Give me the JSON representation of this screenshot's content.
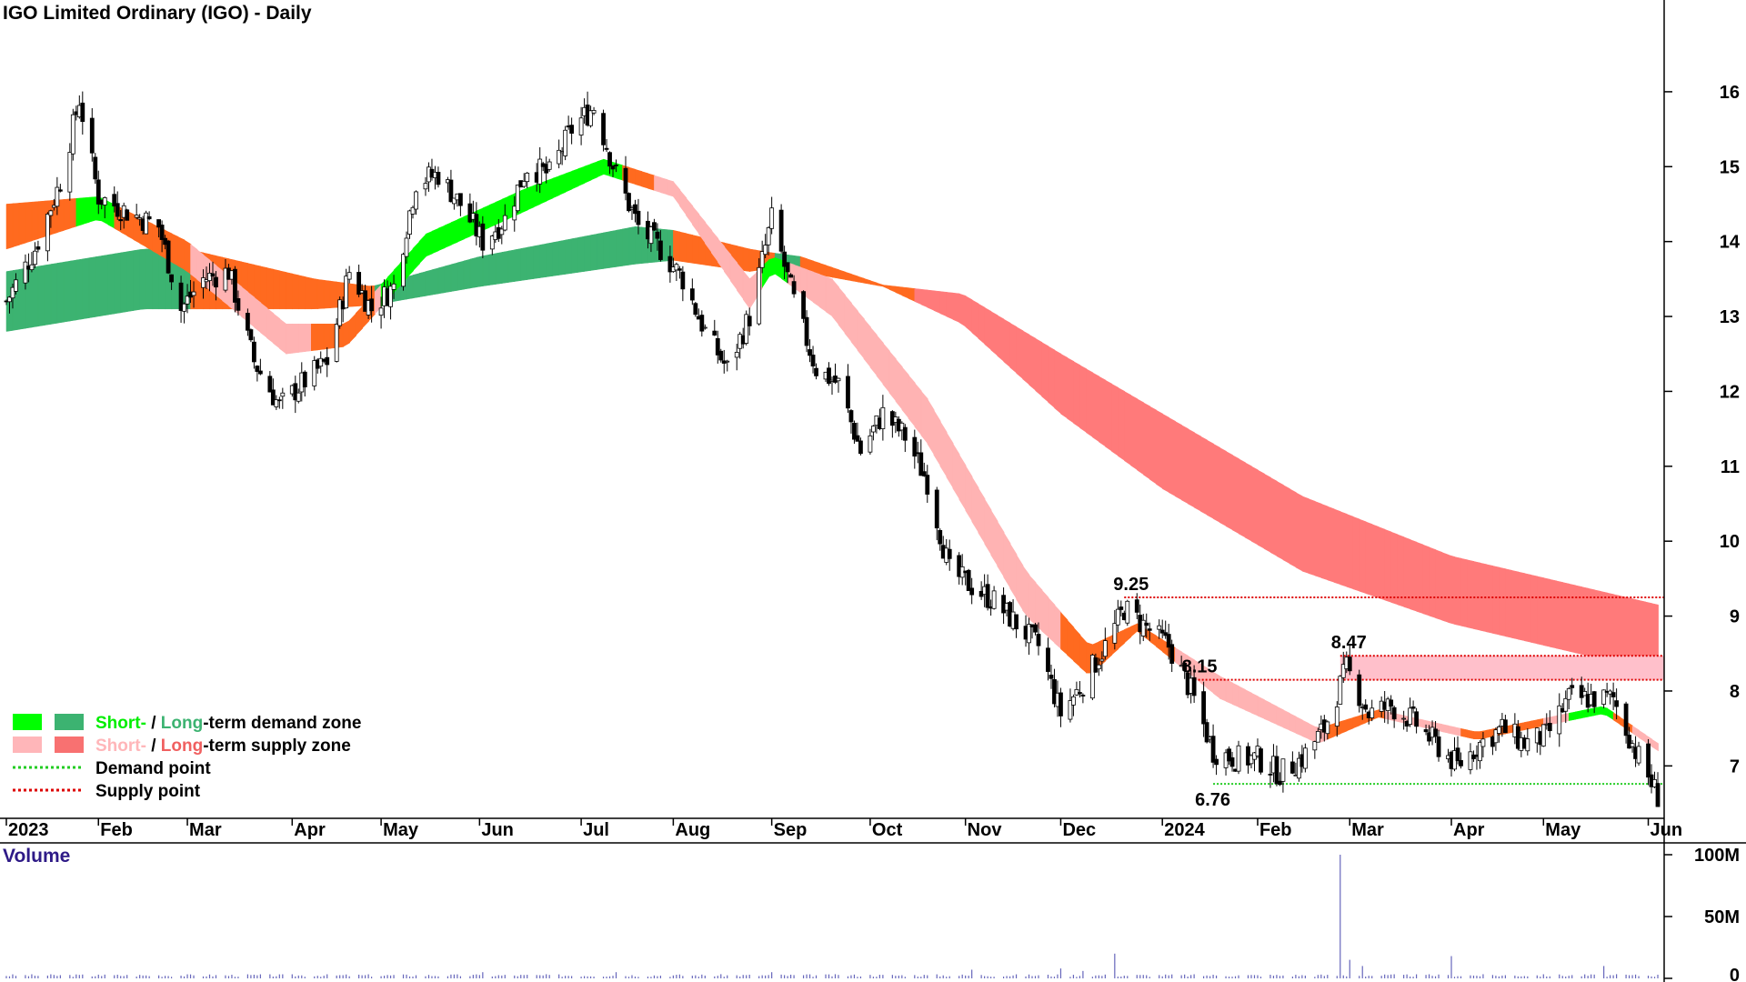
{
  "chart_data": {
    "type": "candlestick",
    "title": "IGO Limited Ordinary (IGO) - Daily",
    "ylim": [
      6.3,
      16.8
    ],
    "y_ticks": [
      7,
      8,
      9,
      10,
      11,
      12,
      13,
      14,
      15,
      16
    ],
    "x_range": [
      "2023-01-01",
      "2024-06-08"
    ],
    "x_ticks": [
      {
        "label": "2023",
        "date": "2023-01-03"
      },
      {
        "label": "Feb",
        "date": "2023-02-01"
      },
      {
        "label": "Mar",
        "date": "2023-03-01"
      },
      {
        "label": "Apr",
        "date": "2023-04-03"
      },
      {
        "label": "May",
        "date": "2023-05-01"
      },
      {
        "label": "Jun",
        "date": "2023-06-01"
      },
      {
        "label": "Jul",
        "date": "2023-07-03"
      },
      {
        "label": "Aug",
        "date": "2023-08-01"
      },
      {
        "label": "Sep",
        "date": "2023-09-01"
      },
      {
        "label": "Oct",
        "date": "2023-10-02"
      },
      {
        "label": "Nov",
        "date": "2023-11-01"
      },
      {
        "label": "Dec",
        "date": "2023-12-01"
      },
      {
        "label": "2024",
        "date": "2024-01-02"
      },
      {
        "label": "Feb",
        "date": "2024-02-01"
      },
      {
        "label": "Mar",
        "date": "2024-03-01"
      },
      {
        "label": "Apr",
        "date": "2024-04-02"
      },
      {
        "label": "May",
        "date": "2024-05-01"
      },
      {
        "label": "Jun",
        "date": "2024-06-03"
      }
    ],
    "price_series": [
      {
        "date": "2023-01-03",
        "close": 13.2
      },
      {
        "date": "2023-01-12",
        "close": 13.9
      },
      {
        "date": "2023-01-20",
        "close": 14.8
      },
      {
        "date": "2023-01-26",
        "close": 15.9
      },
      {
        "date": "2023-02-01",
        "close": 14.6
      },
      {
        "date": "2023-02-10",
        "close": 14.4
      },
      {
        "date": "2023-02-20",
        "close": 14.2
      },
      {
        "date": "2023-02-27",
        "close": 13.1
      },
      {
        "date": "2023-03-06",
        "close": 13.5
      },
      {
        "date": "2023-03-14",
        "close": 13.6
      },
      {
        "date": "2023-03-22",
        "close": 12.4
      },
      {
        "date": "2023-03-30",
        "close": 11.8
      },
      {
        "date": "2023-04-06",
        "close": 12.1
      },
      {
        "date": "2023-04-14",
        "close": 12.4
      },
      {
        "date": "2023-04-21",
        "close": 13.6
      },
      {
        "date": "2023-04-28",
        "close": 13.1
      },
      {
        "date": "2023-05-05",
        "close": 13.4
      },
      {
        "date": "2023-05-12",
        "close": 14.8
      },
      {
        "date": "2023-05-19",
        "close": 14.9
      },
      {
        "date": "2023-05-26",
        "close": 14.5
      },
      {
        "date": "2023-06-02",
        "close": 14.0
      },
      {
        "date": "2023-06-09",
        "close": 14.3
      },
      {
        "date": "2023-06-16",
        "close": 15.0
      },
      {
        "date": "2023-06-23",
        "close": 14.9
      },
      {
        "date": "2023-06-30",
        "close": 15.5
      },
      {
        "date": "2023-07-07",
        "close": 15.8
      },
      {
        "date": "2023-07-14",
        "close": 14.9
      },
      {
        "date": "2023-07-21",
        "close": 14.2
      },
      {
        "date": "2023-07-28",
        "close": 13.9
      },
      {
        "date": "2023-08-04",
        "close": 13.5
      },
      {
        "date": "2023-08-11",
        "close": 12.8
      },
      {
        "date": "2023-08-18",
        "close": 12.3
      },
      {
        "date": "2023-08-25",
        "close": 13.0
      },
      {
        "date": "2023-09-01",
        "close": 14.3
      },
      {
        "date": "2023-09-08",
        "close": 13.2
      },
      {
        "date": "2023-09-15",
        "close": 12.3
      },
      {
        "date": "2023-09-22",
        "close": 12.1
      },
      {
        "date": "2023-09-29",
        "close": 11.2
      },
      {
        "date": "2023-10-06",
        "close": 11.7
      },
      {
        "date": "2023-10-13",
        "close": 11.4
      },
      {
        "date": "2023-10-20",
        "close": 10.8
      },
      {
        "date": "2023-10-27",
        "close": 9.6
      },
      {
        "date": "2023-11-03",
        "close": 9.4
      },
      {
        "date": "2023-11-10",
        "close": 9.2
      },
      {
        "date": "2023-11-17",
        "close": 8.9
      },
      {
        "date": "2023-11-24",
        "close": 8.6
      },
      {
        "date": "2023-12-01",
        "close": 7.7
      },
      {
        "date": "2023-12-08",
        "close": 8.1
      },
      {
        "date": "2023-12-15",
        "close": 8.6
      },
      {
        "date": "2023-12-21",
        "close": 9.1
      },
      {
        "date": "2024-01-04",
        "close": 8.6
      },
      {
        "date": "2024-01-11",
        "close": 8.0
      },
      {
        "date": "2024-01-18",
        "close": 7.2
      },
      {
        "date": "2024-01-25",
        "close": 7.1
      },
      {
        "date": "2024-02-01",
        "close": 7.1
      },
      {
        "date": "2024-02-08",
        "close": 6.9
      },
      {
        "date": "2024-02-15",
        "close": 7.1
      },
      {
        "date": "2024-02-22",
        "close": 7.5
      },
      {
        "date": "2024-02-29",
        "close": 8.3
      },
      {
        "date": "2024-03-07",
        "close": 7.7
      },
      {
        "date": "2024-03-14",
        "close": 7.8
      },
      {
        "date": "2024-03-21",
        "close": 7.6
      },
      {
        "date": "2024-03-28",
        "close": 7.3
      },
      {
        "date": "2024-04-04",
        "close": 7.0
      },
      {
        "date": "2024-04-11",
        "close": 7.3
      },
      {
        "date": "2024-04-18",
        "close": 7.5
      },
      {
        "date": "2024-04-25",
        "close": 7.3
      },
      {
        "date": "2024-05-02",
        "close": 7.4
      },
      {
        "date": "2024-05-09",
        "close": 7.9
      },
      {
        "date": "2024-05-16",
        "close": 7.9
      },
      {
        "date": "2024-05-23",
        "close": 7.9
      },
      {
        "date": "2024-05-30",
        "close": 7.2
      },
      {
        "date": "2024-06-06",
        "close": 6.6
      }
    ],
    "long_term_band": [
      {
        "date": "2023-01-03",
        "low": 12.8,
        "high": 13.6,
        "type": "demand"
      },
      {
        "date": "2023-02-15",
        "low": 13.1,
        "high": 13.9,
        "type": "demand"
      },
      {
        "date": "2023-03-01",
        "low": 13.1,
        "high": 13.9,
        "type": "demand_to_supply"
      },
      {
        "date": "2023-04-10",
        "low": 13.1,
        "high": 13.5,
        "type": "supply"
      },
      {
        "date": "2023-04-28",
        "low": 13.15,
        "high": 13.4,
        "type": "demand"
      },
      {
        "date": "2023-06-01",
        "low": 13.4,
        "high": 13.8,
        "type": "demand"
      },
      {
        "date": "2023-07-20",
        "low": 13.7,
        "high": 14.2,
        "type": "demand"
      },
      {
        "date": "2023-08-01",
        "low": 13.75,
        "high": 14.15,
        "type": "supply"
      },
      {
        "date": "2023-08-25",
        "low": 13.6,
        "high": 13.9,
        "type": "supply"
      },
      {
        "date": "2023-09-01",
        "low": 13.65,
        "high": 13.85,
        "type": "demand"
      },
      {
        "date": "2023-09-10",
        "low": 13.6,
        "high": 13.8,
        "type": "supply"
      },
      {
        "date": "2023-10-06",
        "low": 13.4,
        "high": 13.42,
        "type": "supply"
      },
      {
        "date": "2023-10-31",
        "low": 12.9,
        "high": 13.3,
        "type": "supply"
      },
      {
        "date": "2023-12-01",
        "low": 11.7,
        "high": 12.5,
        "type": "supply"
      },
      {
        "date": "2024-01-02",
        "low": 10.7,
        "high": 11.7,
        "type": "supply"
      },
      {
        "date": "2024-02-15",
        "low": 9.6,
        "high": 10.6,
        "type": "supply"
      },
      {
        "date": "2024-04-02",
        "low": 8.9,
        "high": 9.8,
        "type": "supply"
      },
      {
        "date": "2024-06-06",
        "low": 8.25,
        "high": 9.15,
        "type": "supply"
      }
    ],
    "short_term_band": [
      {
        "date": "2023-01-03",
        "low": 13.9,
        "high": 14.5
      },
      {
        "date": "2023-02-01",
        "low": 14.3,
        "high": 14.6
      },
      {
        "date": "2023-03-01",
        "low": 13.6,
        "high": 14.0
      },
      {
        "date": "2023-04-01",
        "low": 12.5,
        "high": 12.9
      },
      {
        "date": "2023-04-20",
        "low": 12.6,
        "high": 12.9
      },
      {
        "date": "2023-05-15",
        "low": 13.8,
        "high": 14.1
      },
      {
        "date": "2023-06-15",
        "low": 14.4,
        "high": 14.7
      },
      {
        "date": "2023-07-10",
        "low": 14.9,
        "high": 15.1
      },
      {
        "date": "2023-08-01",
        "low": 14.6,
        "high": 14.8
      },
      {
        "date": "2023-08-25",
        "low": 13.1,
        "high": 13.5
      },
      {
        "date": "2023-09-01",
        "low": 13.6,
        "high": 13.8
      },
      {
        "date": "2023-09-20",
        "low": 13.0,
        "high": 13.5
      },
      {
        "date": "2023-10-20",
        "low": 11.3,
        "high": 11.9
      },
      {
        "date": "2023-11-20",
        "low": 9.0,
        "high": 9.6
      },
      {
        "date": "2023-12-10",
        "low": 8.2,
        "high": 8.6
      },
      {
        "date": "2023-12-25",
        "low": 8.8,
        "high": 8.9
      },
      {
        "date": "2024-01-20",
        "low": 7.9,
        "high": 8.2
      },
      {
        "date": "2024-02-20",
        "low": 7.3,
        "high": 7.5
      },
      {
        "date": "2024-03-10",
        "low": 7.65,
        "high": 7.75
      },
      {
        "date": "2024-04-10",
        "low": 7.35,
        "high": 7.45
      },
      {
        "date": "2024-05-20",
        "low": 7.7,
        "high": 7.8
      },
      {
        "date": "2024-06-06",
        "low": 7.2,
        "high": 7.3
      }
    ],
    "annotations": [
      {
        "text": "9.25",
        "date": "2023-12-21",
        "value": 9.25,
        "line_to": "2024-06-08",
        "line": "supply"
      },
      {
        "text": "8.47",
        "date": "2024-02-27",
        "value": 8.47,
        "line_to": "2024-06-08",
        "line": "supply"
      },
      {
        "text": "8.15",
        "date": "2024-01-11",
        "value": 8.15,
        "line_to": "2024-06-08",
        "line": "supply"
      },
      {
        "text": "6.76",
        "date": "2024-01-18",
        "value": 6.76,
        "line_to": "2024-06-08",
        "line": "demand"
      }
    ],
    "supply_rect": {
      "from": "2024-02-27",
      "to": "2024-06-08",
      "low": 8.15,
      "high": 8.47
    },
    "legend": [
      {
        "swatches": [
          "#00ff00",
          "#3cb371"
        ],
        "parts": [
          {
            "text": "Short-",
            "color": "#00ee00"
          },
          {
            "text": " / ",
            "color": "#000000"
          },
          {
            "text": "Long",
            "color": "#3cb371"
          },
          {
            "text": "-term demand zone",
            "color": "#000000"
          }
        ]
      },
      {
        "swatches": [
          "#ffb6b9",
          "#f87171"
        ],
        "parts": [
          {
            "text": "Short-",
            "color": "#ffb6b9"
          },
          {
            "text": " / ",
            "color": "#000000"
          },
          {
            "text": "Long",
            "color": "#f06060"
          },
          {
            "text": "-term supply zone",
            "color": "#000000"
          }
        ]
      },
      {
        "line": "demand",
        "parts": [
          {
            "text": "Demand point",
            "color": "#000000"
          }
        ]
      },
      {
        "line": "supply",
        "parts": [
          {
            "text": "Supply point",
            "color": "#000000"
          }
        ]
      }
    ],
    "volume": {
      "label": "Volume",
      "ylim": [
        0,
        100
      ],
      "y_ticks": [
        {
          "value": 0,
          "label": "0"
        },
        {
          "value": 50,
          "label": "50M"
        },
        {
          "value": 100,
          "label": "100M"
        }
      ],
      "spikes": [
        {
          "date": "2023-02-01",
          "value": 3
        },
        {
          "date": "2023-06-02",
          "value": 5
        },
        {
          "date": "2023-07-14",
          "value": 5
        },
        {
          "date": "2023-09-01",
          "value": 5
        },
        {
          "date": "2023-11-03",
          "value": 7
        },
        {
          "date": "2023-12-01",
          "value": 8
        },
        {
          "date": "2023-12-08",
          "value": 6
        },
        {
          "date": "2023-12-18",
          "value": 20
        },
        {
          "date": "2024-02-27",
          "value": 100
        },
        {
          "date": "2024-03-01",
          "value": 15
        },
        {
          "date": "2024-03-05",
          "value": 10
        },
        {
          "date": "2024-04-02",
          "value": 18
        },
        {
          "date": "2024-04-20",
          "value": 10
        },
        {
          "date": "2024-05-20",
          "value": 10
        }
      ]
    },
    "colors": {
      "long_demand": "#3cb371",
      "long_supply": "#ff7a7a",
      "short_demand": "#00ff00",
      "short_supply": "#ffb3b3",
      "mixed": "#ff6a1f",
      "volume": "#6666bb",
      "demand_line": "#22cc22",
      "supply_line": "#dd0000",
      "supply_rect": "#ffc0cb"
    }
  }
}
